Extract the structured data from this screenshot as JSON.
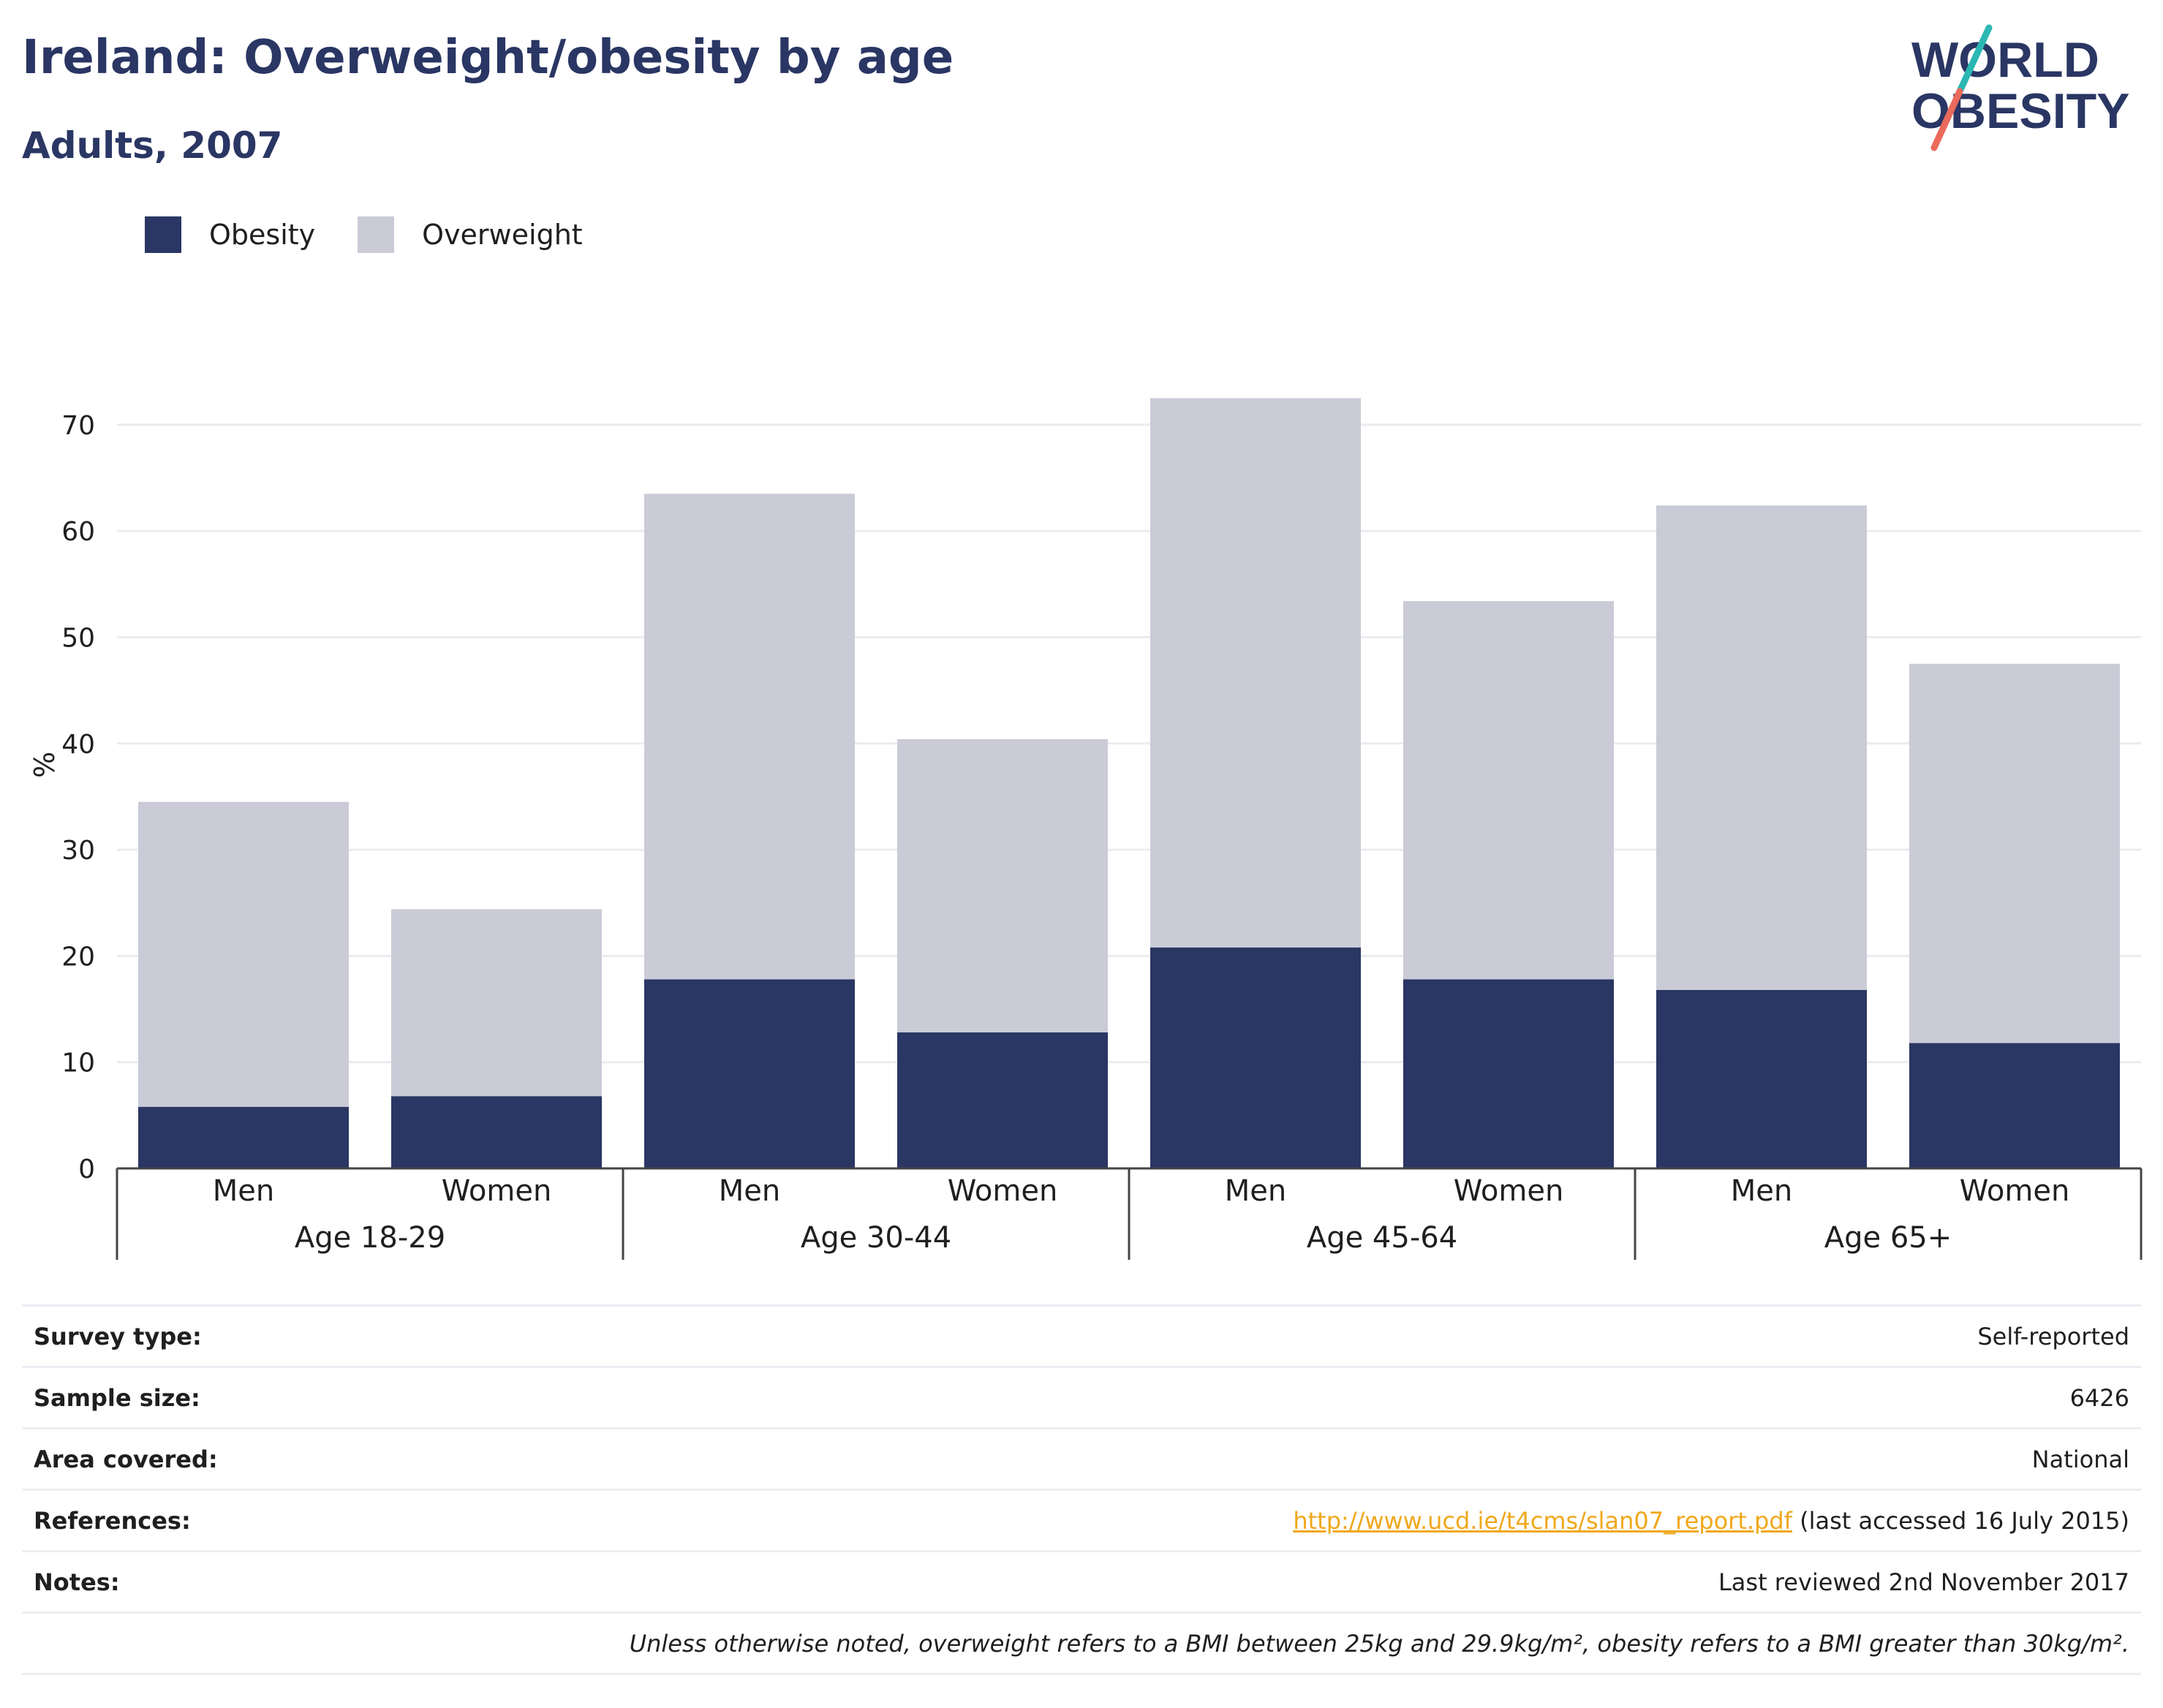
{
  "header": {
    "title": "Ireland: Overweight/obesity by age",
    "subtitle": "Adults, 2007",
    "logo_line1": "WORLD",
    "logo_line2": "OBESITY"
  },
  "colors": {
    "obesity": "#2a3663",
    "overweight": "#cacbd7",
    "title": "#2a3663",
    "grid": "#ebecf0",
    "link": "#f0a81c",
    "logo_teal": "#2bb7b3",
    "logo_coral": "#ea6a5b"
  },
  "chart_data": {
    "type": "bar",
    "stacked": true,
    "ylabel": "%",
    "ylim": [
      0,
      73
    ],
    "yticks": [
      0,
      10,
      20,
      30,
      40,
      50,
      60,
      70
    ],
    "grid": true,
    "legend_position": "top-left",
    "groups": [
      "Age 18-29",
      "Age 30-44",
      "Age 45-64",
      "Age 65+"
    ],
    "categories": [
      "Men",
      "Women",
      "Men",
      "Women",
      "Men",
      "Women",
      "Men",
      "Women"
    ],
    "series": [
      {
        "name": "Obesity",
        "values": [
          5.8,
          6.8,
          17.8,
          12.8,
          20.8,
          17.8,
          16.8,
          11.8
        ]
      },
      {
        "name": "Overweight",
        "values": [
          28.7,
          17.6,
          45.7,
          27.6,
          51.7,
          35.6,
          45.6,
          35.7
        ]
      }
    ]
  },
  "info_table": {
    "rows": [
      {
        "label": "Survey type:",
        "value": "Self-reported"
      },
      {
        "label": "Sample size:",
        "value": "6426"
      },
      {
        "label": "Area covered:",
        "value": "National"
      },
      {
        "label": "References:",
        "link": "http://www.ucd.ie/t4cms/slan07_report.pdf",
        "value": "(last accessed 16 July 2015)"
      },
      {
        "label": "Notes:",
        "value": "Last reviewed 2nd November 2017"
      }
    ],
    "disclaimer": "Unless otherwise noted, overweight refers to a BMI between 25kg and 29.9kg/m², obesity refers to a BMI greater than 30kg/m²."
  }
}
